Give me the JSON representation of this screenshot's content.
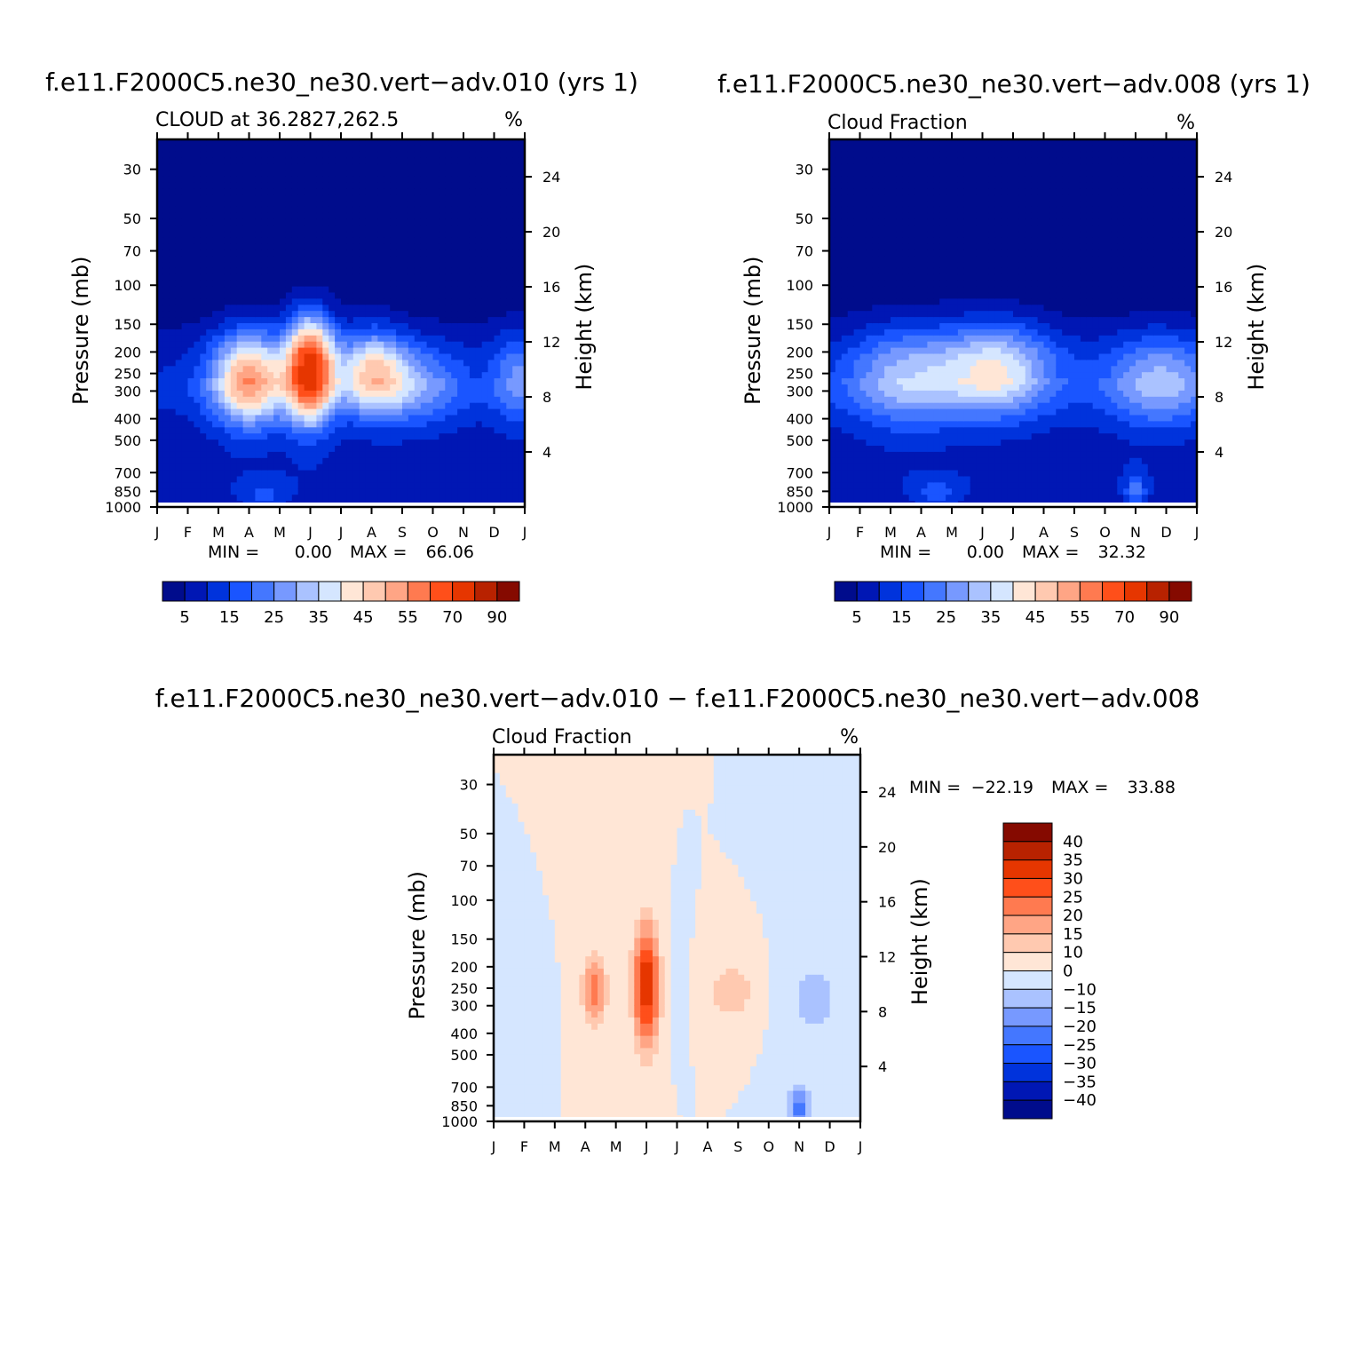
{
  "colors": {
    "seq": [
      "#000c8c",
      "#0017b4",
      "#0033dc",
      "#1a55ff",
      "#4477ff",
      "#7799ff",
      "#aac2ff",
      "#d5e6ff",
      "#ffe6d6",
      "#ffc9b0",
      "#ffa585",
      "#ff7a50",
      "#ff4f1a",
      "#e63600",
      "#b82200",
      "#850a00"
    ],
    "diff": [
      "#000c8c",
      "#0017b4",
      "#0033dc",
      "#1a55ff",
      "#4477ff",
      "#7799ff",
      "#aac2ff",
      "#d5e6ff",
      "#ffe6d6",
      "#ffc9b0",
      "#ffa585",
      "#ff7a50",
      "#ff4f1a",
      "#e63600",
      "#b82200",
      "#850a00"
    ]
  },
  "chart_data": [
    {
      "type": "heatmap",
      "id": "panel-a",
      "top_title": "f.e11.F2000C5.ne30_ne30.vert−adv.010  (yrs  1)",
      "left_string": "CLOUD  at  36.2827,262.5",
      "units": "%",
      "ylabel": "Pressure  (mb)",
      "ylabel_right": "Height  (km)",
      "months": [
        "J",
        "F",
        "M",
        "A",
        "M",
        "J",
        "J",
        "A",
        "S",
        "O",
        "N",
        "D",
        "J"
      ],
      "pressure_ticks": [
        "30",
        "50",
        "70",
        "100",
        "150",
        "200",
        "250",
        "300",
        "400",
        "500",
        "700",
        "850",
        "1000"
      ],
      "height_ticks": [
        "24",
        "20",
        "16",
        "12",
        "8",
        "4"
      ],
      "min_label": "MIN  =",
      "min_value": "0.00",
      "max_label": "MAX  =",
      "max_value": "66.06",
      "colorbar_labels": [
        "5",
        "15",
        "25",
        "35",
        "45",
        "55",
        "70",
        "90"
      ],
      "features": [
        {
          "month": 3.0,
          "p": 265,
          "amp": 44,
          "sx": 0.85,
          "sy": 0.09
        },
        {
          "month": 5.0,
          "p": 240,
          "amp": 64,
          "sx": 0.55,
          "sy": 0.1
        },
        {
          "month": 7.0,
          "p": 245,
          "amp": 30,
          "sx": 0.75,
          "sy": 0.08
        },
        {
          "month": 8.3,
          "p": 280,
          "amp": 18,
          "sx": 1.2,
          "sy": 0.08
        },
        {
          "month": 11.8,
          "p": 260,
          "amp": 16,
          "sx": 0.6,
          "sy": 0.09
        },
        {
          "month": 3.5,
          "p": 880,
          "amp": 8,
          "sx": 0.6,
          "sy": 0.03
        }
      ]
    },
    {
      "type": "heatmap",
      "id": "panel-b",
      "top_title": "f.e11.F2000C5.ne30_ne30.vert−adv.008  (yrs  1)",
      "left_string": "Cloud  Fraction",
      "units": "%",
      "ylabel": "Pressure  (mb)",
      "ylabel_right": "Height  (km)",
      "months": [
        "J",
        "F",
        "M",
        "A",
        "M",
        "J",
        "J",
        "A",
        "S",
        "O",
        "N",
        "D",
        "J"
      ],
      "pressure_ticks": [
        "30",
        "50",
        "70",
        "100",
        "150",
        "200",
        "250",
        "300",
        "400",
        "500",
        "700",
        "850",
        "1000"
      ],
      "height_ticks": [
        "24",
        "20",
        "16",
        "12",
        "8",
        "4"
      ],
      "min_label": "MIN  =",
      "min_value": "0.00",
      "max_label": "MAX  =",
      "max_value": "32.32",
      "colorbar_labels": [
        "5",
        "15",
        "25",
        "35",
        "45",
        "55",
        "70",
        "90"
      ],
      "features": [
        {
          "month": 2.5,
          "p": 260,
          "amp": 22,
          "sx": 1.4,
          "sy": 0.1
        },
        {
          "month": 5.5,
          "p": 240,
          "amp": 30,
          "sx": 1.3,
          "sy": 0.09
        },
        {
          "month": 10.8,
          "p": 270,
          "amp": 22,
          "sx": 1.3,
          "sy": 0.09
        },
        {
          "month": 3.5,
          "p": 870,
          "amp": 9,
          "sx": 0.6,
          "sy": 0.03
        },
        {
          "month": 10.0,
          "p": 860,
          "amp": 14,
          "sx": 0.25,
          "sy": 0.04
        }
      ]
    },
    {
      "type": "heatmap",
      "id": "panel-c",
      "top_title": "f.e11.F2000C5.ne30_ne30.vert−adv.010  −  f.e11.F2000C5.ne30_ne30.vert−adv.008",
      "left_string": "Cloud  Fraction",
      "units": "%",
      "ylabel": "Pressure  (mb)",
      "ylabel_right": "Height  (km)",
      "months": [
        "J",
        "F",
        "M",
        "A",
        "M",
        "J",
        "J",
        "A",
        "S",
        "O",
        "N",
        "D",
        "J"
      ],
      "pressure_ticks": [
        "30",
        "50",
        "70",
        "100",
        "150",
        "200",
        "250",
        "300",
        "400",
        "500",
        "700",
        "850",
        "1000"
      ],
      "height_ticks": [
        "24",
        "20",
        "16",
        "12",
        "8",
        "4"
      ],
      "min_label": "MIN  =",
      "min_value": "−22.19",
      "max_label": "MAX  =",
      "max_value": "33.88",
      "colorbar_labels": [
        "40",
        "35",
        "30",
        "25",
        "20",
        "15",
        "10",
        "0",
        "−10",
        "−15",
        "−20",
        "−25",
        "−30",
        "−35",
        "−40"
      ],
      "features": [
        {
          "month": 3.3,
          "p": 255,
          "amp": 22,
          "sx": 0.35,
          "sy": 0.08
        },
        {
          "month": 5.0,
          "p": 245,
          "amp": 34,
          "sx": 0.35,
          "sy": 0.14
        },
        {
          "month": 7.8,
          "p": 260,
          "amp": 14,
          "sx": 0.7,
          "sy": 0.07
        },
        {
          "month": 6.0,
          "p": 230,
          "amp": -12,
          "sx": 0.2,
          "sy": 0.1
        },
        {
          "month": 10.5,
          "p": 280,
          "amp": -13,
          "sx": 0.8,
          "sy": 0.1
        },
        {
          "month": 10.0,
          "p": 860,
          "amp": -22,
          "sx": 0.3,
          "sy": 0.05
        },
        {
          "month": 1.4,
          "p": 320,
          "amp": -9,
          "sx": 0.3,
          "sy": 0.06
        }
      ]
    }
  ]
}
